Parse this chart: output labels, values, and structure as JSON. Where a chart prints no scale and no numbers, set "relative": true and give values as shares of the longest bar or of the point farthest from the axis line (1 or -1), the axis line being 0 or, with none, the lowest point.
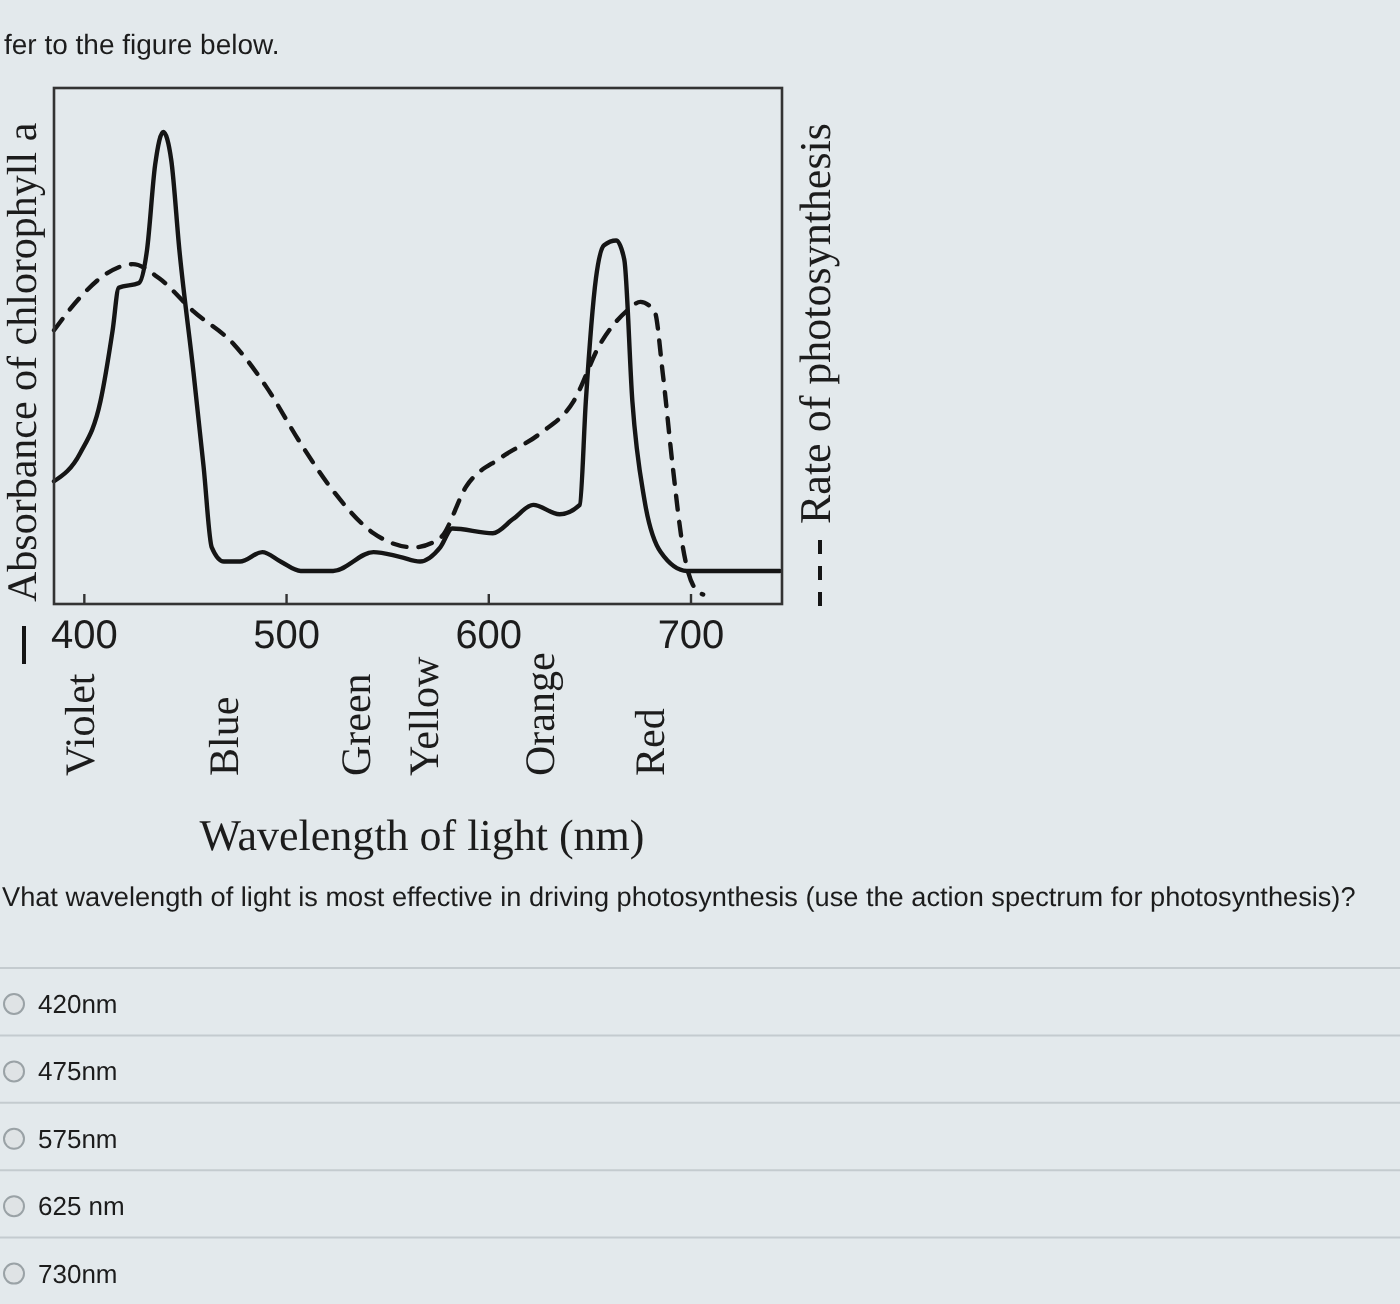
{
  "chart_data": {
    "type": "line",
    "title": "fer to the figure below.",
    "xlabel": "Wavelength of light (nm)",
    "ylabel": "Absorbance of chlorophyll a",
    "y2label": "Rate of photosynthesis",
    "relative": true,
    "xlim": [
      385,
      745
    ],
    "xticks": [
      400,
      500,
      600,
      700
    ],
    "series": [
      {
        "color": "#151515",
        "line_style": "solid",
        "x": [
          385,
          398,
          408,
          414,
          417,
          427,
          431,
          435,
          439,
          443,
          447,
          454,
          459,
          463,
          469,
          477,
          488,
          497,
          507,
          523,
          543,
          556,
          566,
          576,
          582,
          602,
          612,
          622,
          635,
          645,
          648,
          653,
          657,
          663,
          667,
          671,
          677,
          685,
          698,
          721,
          744
        ],
        "values": [
          0.26,
          0.32,
          0.43,
          0.58,
          0.67,
          0.68,
          0.75,
          0.93,
          1,
          0.94,
          0.75,
          0.49,
          0.29,
          0.12,
          0.09,
          0.09,
          0.11,
          0.09,
          0.07,
          0.07,
          0.11,
          0.1,
          0.09,
          0.12,
          0.16,
          0.15,
          0.18,
          0.21,
          0.19,
          0.21,
          0.43,
          0.69,
          0.76,
          0.77,
          0.73,
          0.43,
          0.22,
          0.11,
          0.07,
          0.07,
          0.07
        ]
      },
      {
        "color": "#151515",
        "line_style": "dashed",
        "x": [
          385,
          398,
          411,
          424,
          437,
          454,
          474,
          490,
          507,
          523,
          543,
          563,
          576,
          589,
          606,
          625,
          642,
          655,
          668,
          675,
          682,
          686,
          691,
          696,
          701,
          706
        ],
        "values": [
          0.58,
          0.65,
          0.7,
          0.72,
          0.69,
          0.62,
          0.55,
          0.46,
          0.34,
          0.24,
          0.15,
          0.12,
          0.14,
          0.25,
          0.31,
          0.36,
          0.43,
          0.55,
          0.62,
          0.64,
          0.62,
          0.49,
          0.29,
          0.12,
          0.04,
          0.02
        ]
      }
    ],
    "annotations": [
      "Violet",
      "Blue",
      "Green",
      "Yellow",
      "Orange",
      "Red",
      "Vhat wavelength of light is most effective in driving photosynthesis (use the action spectrum for photosynthesis)?",
      "420nm",
      "475nm",
      "575nm",
      "625 nm",
      "730nm"
    ]
  }
}
